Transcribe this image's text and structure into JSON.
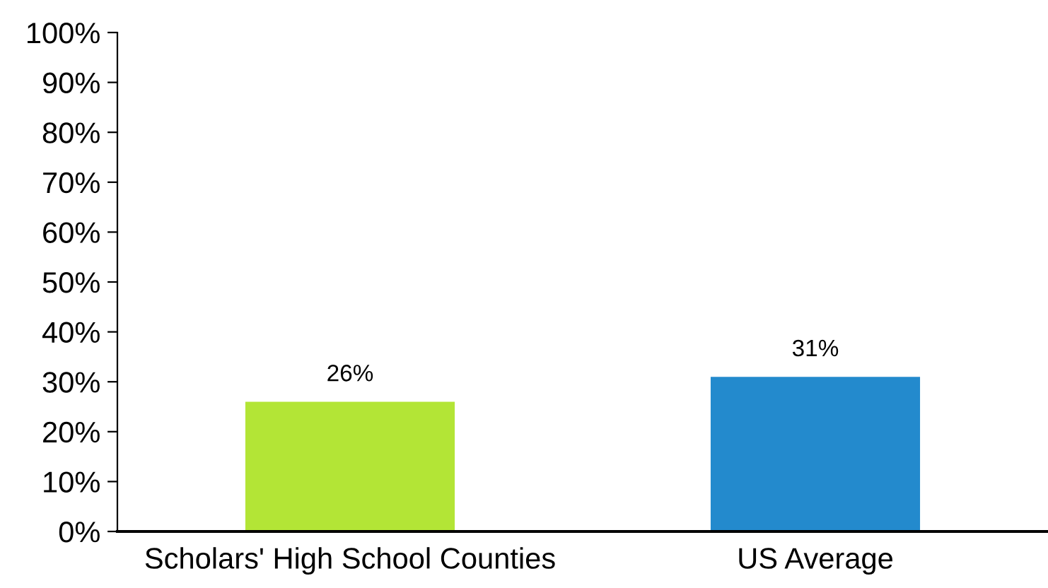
{
  "chart_data": {
    "type": "bar",
    "categories": [
      "Scholars' High School Counties",
      "US Average"
    ],
    "values": [
      26,
      31
    ],
    "colors": [
      "#b3e536",
      "#238acd"
    ],
    "value_labels": [
      "26%",
      "31%"
    ],
    "ylim": [
      0,
      100
    ],
    "yticks": [
      {
        "value": 0,
        "label": "0%"
      },
      {
        "value": 10,
        "label": "10%"
      },
      {
        "value": 20,
        "label": "20%"
      },
      {
        "value": 30,
        "label": "30%"
      },
      {
        "value": 40,
        "label": "40%"
      },
      {
        "value": 50,
        "label": "50%"
      },
      {
        "value": 60,
        "label": "60%"
      },
      {
        "value": 70,
        "label": "70%"
      },
      {
        "value": 80,
        "label": "80%"
      },
      {
        "value": 90,
        "label": "90%"
      },
      {
        "value": 100,
        "label": "100%"
      }
    ],
    "grid": false,
    "legend": false
  }
}
